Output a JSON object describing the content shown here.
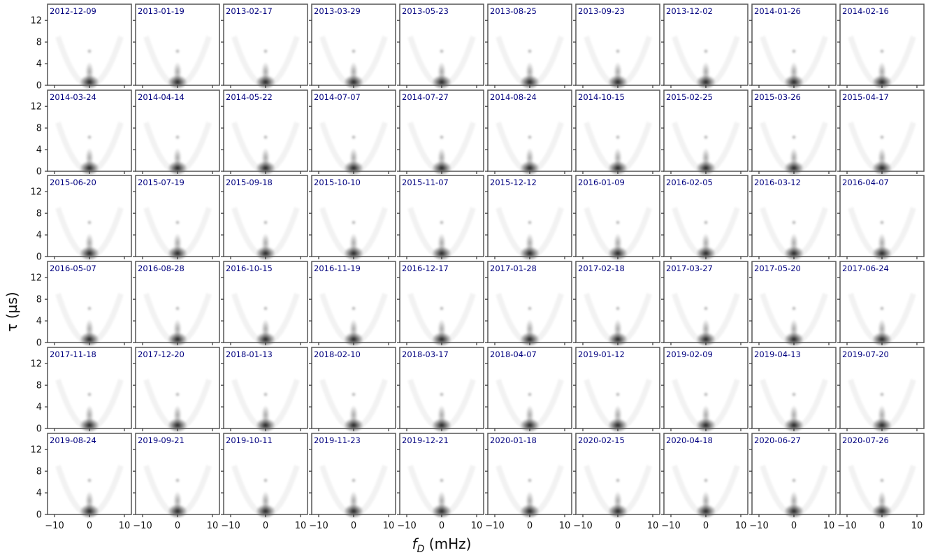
{
  "chart_data": {
    "type": "heatmap",
    "layout": {
      "rows": 6,
      "cols": 10
    },
    "panel_titles": [
      "2012-12-09",
      "2013-01-19",
      "2013-02-17",
      "2013-03-29",
      "2013-05-23",
      "2013-08-25",
      "2013-09-23",
      "2013-12-02",
      "2014-01-26",
      "2014-02-16",
      "2014-03-24",
      "2014-04-14",
      "2014-05-22",
      "2014-07-07",
      "2014-07-27",
      "2014-08-24",
      "2014-10-15",
      "2015-02-25",
      "2015-03-26",
      "2015-04-17",
      "2015-06-20",
      "2015-07-19",
      "2015-09-18",
      "2015-10-10",
      "2015-11-07",
      "2015-12-12",
      "2016-01-09",
      "2016-02-05",
      "2016-03-12",
      "2016-04-07",
      "2016-05-07",
      "2016-08-28",
      "2016-10-15",
      "2016-11-19",
      "2016-12-17",
      "2017-01-28",
      "2017-02-18",
      "2017-03-27",
      "2017-05-20",
      "2017-06-24",
      "2017-11-18",
      "2017-12-20",
      "2018-01-13",
      "2018-02-10",
      "2018-03-17",
      "2018-04-07",
      "2019-01-12",
      "2019-02-09",
      "2019-04-13",
      "2019-07-20",
      "2019-08-24",
      "2019-09-21",
      "2019-10-11",
      "2019-11-23",
      "2019-12-21",
      "2020-01-18",
      "2020-02-15",
      "2020-04-18",
      "2020-06-27",
      "2020-07-26"
    ],
    "xlabel": "f_D (mHz)",
    "ylabel": "τ (µs)",
    "xlim": [
      -12,
      12
    ],
    "ylim": [
      0,
      15
    ],
    "x_ticks": [
      -10,
      0,
      10
    ],
    "x_tick_labels": [
      "−10",
      "0",
      "10"
    ],
    "y_ticks": [
      0,
      4,
      8,
      12
    ],
    "y_tick_labels": [
      "0",
      "4",
      "8",
      "12"
    ],
    "colormap": "Greys",
    "grid": false,
    "legend": "none"
  },
  "colors": {
    "panel_border": "#555555",
    "title_text": "#00007f",
    "intensity": "#000000",
    "background": "#ffffff"
  }
}
